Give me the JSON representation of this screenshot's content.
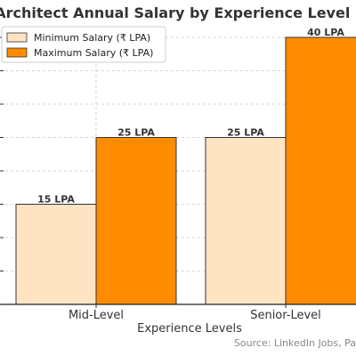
{
  "chart_data": {
    "type": "bar",
    "title": "Java Architect Annual Salary by Experience Level",
    "xlabel": "Experience Levels",
    "ylabel": "",
    "categories": [
      "Mid-Level",
      "Senior-Level"
    ],
    "series": [
      {
        "name": "Minimum Salary (₹ LPA)",
        "values": [
          15,
          25
        ],
        "labels": [
          "15 LPA",
          "25 LPA"
        ],
        "color": "#ffe4c4"
      },
      {
        "name": "Maximum Salary (₹ LPA)",
        "values": [
          25,
          40
        ],
        "labels": [
          "25 LPA",
          "40 LPA"
        ],
        "color": "#ff8c00"
      }
    ],
    "ylim": [
      0,
      40
    ],
    "grid": true,
    "legend_position": "top-left",
    "source": "Source: LinkedIn Jobs, Pa"
  }
}
